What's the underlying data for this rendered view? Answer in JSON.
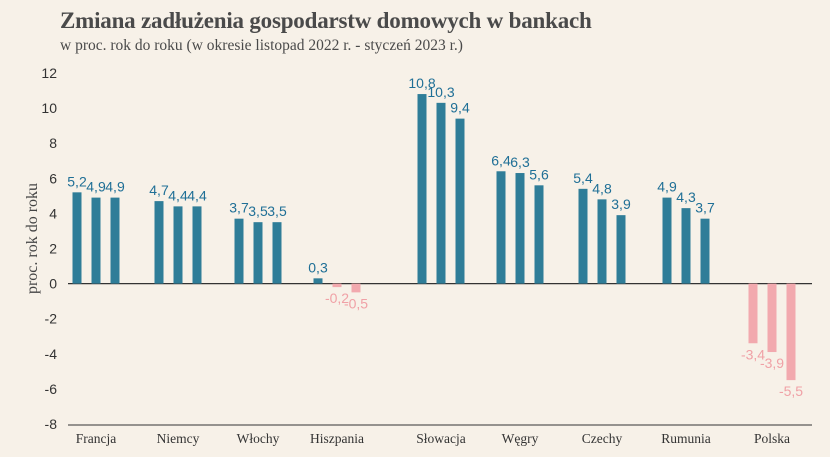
{
  "title": "Zmiana zadłużenia gospodarstw domowych w bankach",
  "subtitle": "w proc. rok do roku (w okresie listopad 2022 r. - styczeń 2023 r.)",
  "chart_data": {
    "type": "bar",
    "ylabel": "proc. rok do roku",
    "ylim": [
      -8,
      12
    ],
    "yticks": [
      12,
      10,
      8,
      6,
      4,
      2,
      0,
      -2,
      -4,
      -6,
      -8
    ],
    "grid": false,
    "categories": [
      "Francja",
      "Niemcy",
      "Włochy",
      "Hiszpania",
      "Słowacja",
      "Węgry",
      "Czechy",
      "Rumunia",
      "Polska"
    ],
    "series": [
      {
        "values": [
          5.2,
          4.7,
          3.7,
          0.3,
          10.8,
          6.4,
          5.4,
          4.9,
          -3.4
        ]
      },
      {
        "values": [
          4.9,
          4.4,
          3.5,
          -0.2,
          10.3,
          6.3,
          4.8,
          4.3,
          -3.9
        ]
      },
      {
        "values": [
          4.9,
          4.4,
          3.5,
          -0.5,
          9.4,
          5.6,
          3.9,
          3.7,
          -5.5
        ]
      }
    ],
    "data_labels": [
      [
        "5,2",
        "4,7",
        "3,7",
        "0,3",
        "10,8",
        "6,4",
        "5,4",
        "4,9",
        "-3,4"
      ],
      [
        "4,9",
        "4,4",
        "3,5",
        "-0,2",
        "10,3",
        "6,3",
        "4,8",
        "4,3",
        "-3,9"
      ],
      [
        "4,9",
        "4,4",
        "3,5",
        "-0,5",
        "9,4",
        "5,6",
        "3,9",
        "3,7",
        "-5,5"
      ]
    ],
    "colors": {
      "positive": "#2f7d98",
      "negative": "#f2a9ae",
      "positive_label": "#1f6f96",
      "negative_label": "#f0a1a6"
    }
  }
}
